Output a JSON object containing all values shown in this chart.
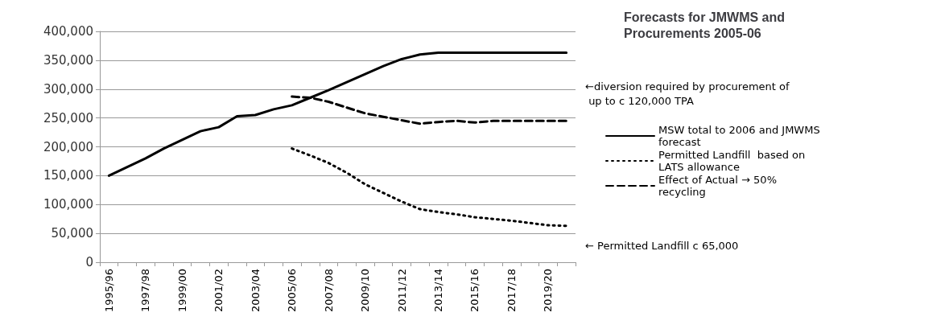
{
  "chart_data": {
    "type": "line",
    "title": "Forecasts for JMWMS and Procurements 2005-06",
    "categories": [
      "1995/96",
      null,
      "1997/98",
      null,
      "1999/00",
      null,
      "2001/02",
      null,
      "2003/04",
      null,
      "2005/06",
      null,
      "2007/08",
      null,
      "2009/10",
      null,
      "2011/12",
      null,
      "2013/14",
      null,
      "2015/16",
      null,
      "2017/18",
      null,
      "2019/20",
      null
    ],
    "series": [
      {
        "name": "MSW total to 2006 and JMWMS forecast",
        "color": "#000000",
        "line_style": "solid",
        "values": [
          150000,
          165000,
          180000,
          197000,
          212000,
          227000,
          234000,
          253000,
          255000,
          265000,
          272000,
          285000,
          298000,
          312000,
          326000,
          340000,
          352000,
          360000,
          363000,
          363000,
          363000,
          363000,
          363000,
          363000,
          363000,
          363000
        ]
      },
      {
        "name": "Permitted Landfill  based on LATS allowance",
        "color": "#000000",
        "line_style": "dotted",
        "values": [
          null,
          null,
          null,
          null,
          null,
          null,
          null,
          null,
          null,
          null,
          197000,
          185000,
          172000,
          155000,
          135000,
          120000,
          105000,
          92000,
          87000,
          83000,
          78000,
          75000,
          72000,
          68000,
          64000,
          63000
        ]
      },
      {
        "name": "Effect of Actual → 50% recycling",
        "color": "#000000",
        "line_style": "dashed",
        "values": [
          null,
          null,
          null,
          null,
          null,
          null,
          null,
          null,
          null,
          null,
          287000,
          285000,
          278000,
          268000,
          258000,
          252000,
          246000,
          240000,
          243000,
          245000,
          242000,
          245000,
          245000,
          245000,
          245000,
          245000
        ]
      }
    ],
    "ylim": [
      0,
      400000
    ],
    "yticks": [
      0,
      {
        "value": 50000,
        "label": "50,000"
      },
      {
        "value": 100000,
        "label": "100,000"
      },
      {
        "value": 150000,
        "label": "150,000"
      },
      {
        "value": 200000,
        "label": "200,000"
      },
      {
        "value": 250000,
        "label": "250,000"
      },
      {
        "value": 300000,
        "label": "300,000"
      },
      {
        "value": 350000,
        "label": "350,000"
      },
      {
        "value": 400000,
        "label": "400,000"
      }
    ],
    "grid": "y",
    "legend": "right",
    "marker": "none",
    "annotations": [
      "←diversion required by procurement of up to c 120,000 TPA",
      "← Permitted Landfill c 65,000"
    ]
  }
}
